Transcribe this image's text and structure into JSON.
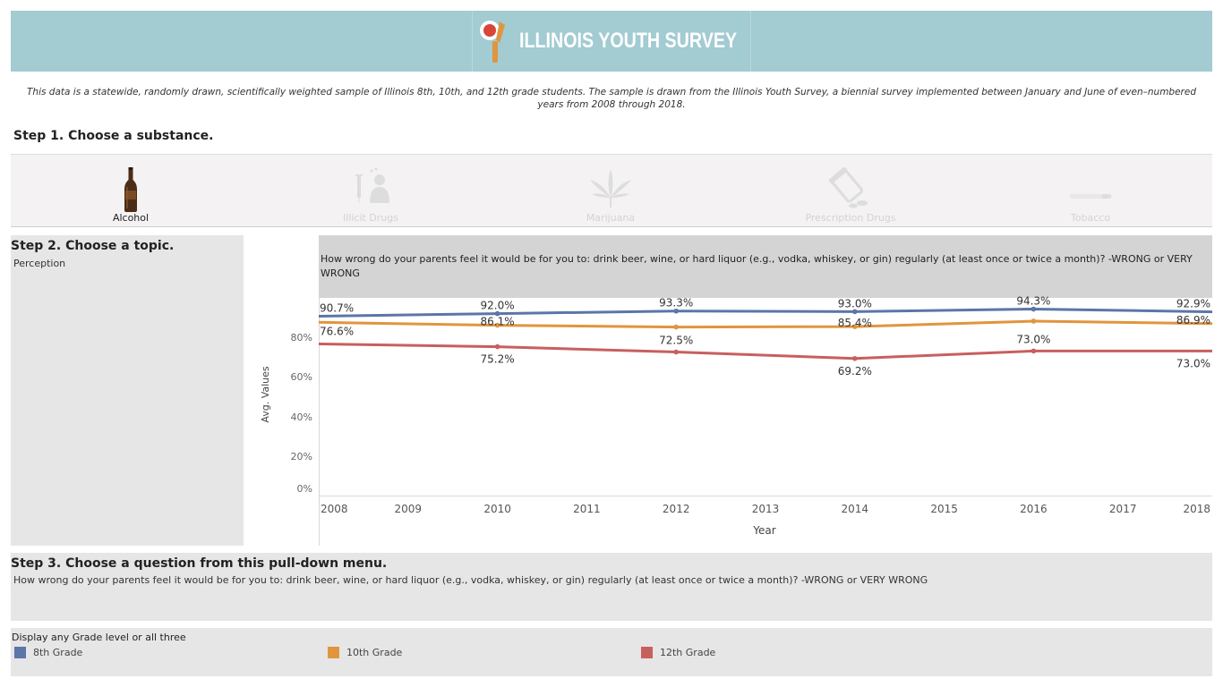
{
  "banner": {
    "logo_text": "ILLINOIS YOUTH SURVEY",
    "bg_color": "#a2cbd2"
  },
  "intro_text": "This data is a statewide, randomly drawn, scientifically weighted sample of Illinois 8th, 10th, and 12th grade students. The sample is drawn from the Illinois Youth Survey, a biennial survey implemented between January and June of even–numbered years from 2008 through 2018.",
  "step1": {
    "title": "Step 1. Choose a substance.",
    "substances": [
      {
        "label": "Alcohol",
        "icon": "beer-bottle-icon",
        "active": true
      },
      {
        "label": "Illicit Drugs",
        "icon": "syringe-person-icon",
        "active": false
      },
      {
        "label": "Marijuana",
        "icon": "cannabis-leaf-icon",
        "active": false
      },
      {
        "label": "Prescription Drugs",
        "icon": "pill-bottle-icon",
        "active": false
      },
      {
        "label": "Tobacco",
        "icon": "cigarette-icon",
        "active": false
      }
    ]
  },
  "step2": {
    "title": "Step 2. Choose a topic.",
    "topic": "Perception"
  },
  "step3": {
    "title": "Step 3. Choose a question from this pull-down menu.",
    "question": "How wrong do your parents feel it would be for you to: drink beer, wine, or hard liquor (e.g., vodka, whiskey, or gin) regularly (at least once or twice a month)? -WRONG or VERY WRONG"
  },
  "legend": {
    "title": "Display any Grade level or all three"
  },
  "chart_data": {
    "type": "line",
    "title": "How wrong do your parents feel it would be for you to: drink beer, wine, or hard liquor (e.g., vodka, whiskey, or gin) regularly (at least once or twice a month)? -WRONG or VERY WRONG",
    "xlabel": "Year",
    "ylabel": "Avg. Values",
    "x_ticks": [
      "2008",
      "2009",
      "2010",
      "2011",
      "2012",
      "2013",
      "2014",
      "2015",
      "2016",
      "2017",
      "2018"
    ],
    "y_ticks": [
      "0%",
      "20%",
      "40%",
      "60%",
      "80%"
    ],
    "xlim": [
      2008,
      2018
    ],
    "ylim": [
      0,
      100
    ],
    "grid": false,
    "legend_position": "bottom",
    "series": [
      {
        "name": "8th Grade",
        "color": "#5b76a8",
        "x": [
          2008,
          2010,
          2012,
          2014,
          2016,
          2018
        ],
        "values": [
          90.7,
          92.0,
          93.3,
          93.0,
          94.3,
          92.9
        ],
        "labels": [
          "90.7%",
          "92.0%",
          "93.3%",
          "93.0%",
          "94.3%",
          "92.9%"
        ]
      },
      {
        "name": "10th Grade",
        "color": "#e0953e",
        "x": [
          2008,
          2010,
          2012,
          2014,
          2016,
          2018
        ],
        "values": [
          87.6,
          86.1,
          85.2,
          85.4,
          88.2,
          86.9
        ],
        "labels": [
          "",
          "86.1%",
          "",
          "85.4%",
          "",
          "86.9%"
        ]
      },
      {
        "name": "12th Grade",
        "color": "#c85f5f",
        "x": [
          2008,
          2010,
          2012,
          2014,
          2016,
          2018
        ],
        "values": [
          76.6,
          75.2,
          72.5,
          69.2,
          73.0,
          73.0
        ],
        "labels": [
          "76.6%",
          "75.2%",
          "72.5%",
          "69.2%",
          "73.0%",
          "73.0%"
        ]
      }
    ]
  }
}
